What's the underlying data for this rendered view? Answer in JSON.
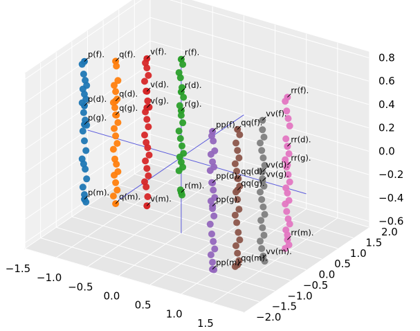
{
  "chart_data": {
    "type": "scatter",
    "projection": "3d",
    "grid": true,
    "xlim": [
      -1.5,
      2.0
    ],
    "ylim": [
      -2.0,
      2.0
    ],
    "zlim": [
      -0.65,
      0.85
    ],
    "x_ticks": [
      "−1.5",
      "−1.0",
      "−0.5",
      "0.0",
      "0.5",
      "1.0",
      "1.5"
    ],
    "y_ticks": [
      "−2.0",
      "−1.5",
      "−1.0",
      "−0.5",
      "0.0",
      "0.5",
      "1.0",
      "1.5",
      "2.0"
    ],
    "z_ticks": [
      "−0.6",
      "−0.4",
      "−0.2",
      "0.0",
      "0.2",
      "0.4",
      "0.6",
      "0.8"
    ],
    "reference_axes_color": "#5a5adc",
    "series": [
      {
        "color": "#1f77b4",
        "x": -1.55,
        "y": 0.0,
        "points": [
          0.55,
          0.47,
          0.42,
          0.38,
          0.34,
          0.3,
          0.26,
          0.22,
          0.14,
          0.08,
          0.04,
          -0.02,
          -0.1,
          -0.18,
          -0.26,
          -0.3,
          -0.34,
          -0.42,
          -0.5,
          -0.56,
          -0.62
        ],
        "labels": [
          {
            "text": "p(f).",
            "z": 0.58
          },
          {
            "text": "p(d).",
            "z": 0.2
          },
          {
            "text": "p(g).",
            "z": 0.04
          },
          {
            "text": "p(m).",
            "z": -0.6
          }
        ]
      },
      {
        "color": "#ff7f0e",
        "x": -1.05,
        "y": 0.0,
        "points": [
          0.62,
          0.5,
          0.45,
          0.4,
          0.34,
          0.3,
          0.26,
          0.2,
          0.14,
          0.08,
          0.02,
          -0.04,
          -0.1,
          -0.18,
          -0.22,
          -0.28,
          -0.32,
          -0.38,
          -0.44,
          -0.5
        ],
        "labels": [
          {
            "text": "q(f).",
            "z": 0.66
          },
          {
            "text": "q(d).",
            "z": 0.32
          },
          {
            "text": "q(g).",
            "z": 0.2
          },
          {
            "text": "q(m).",
            "z": -0.56
          }
        ]
      },
      {
        "color": "#d62728",
        "x": -0.55,
        "y": 0.0,
        "points": [
          0.72,
          0.68,
          0.62,
          0.56,
          0.48,
          0.4,
          0.35,
          0.3,
          0.24,
          0.18,
          0.1,
          0.04,
          0.0,
          -0.06,
          -0.12,
          -0.18,
          -0.24,
          -0.3,
          -0.34,
          -0.42
        ],
        "labels": [
          {
            "text": "v(f).",
            "z": 0.76
          },
          {
            "text": "v(d).",
            "z": 0.48
          },
          {
            "text": "v(g).",
            "z": 0.34
          },
          {
            "text": "v(m).",
            "z": -0.5
          }
        ]
      },
      {
        "color": "#2ca02c",
        "x": 0.0,
        "y": 0.0,
        "points": [
          0.8,
          0.72,
          0.68,
          0.6,
          0.52,
          0.44,
          0.36,
          0.3,
          0.22,
          0.16,
          0.1,
          0.04,
          0.0,
          -0.04,
          -0.08,
          -0.12,
          -0.28,
          -0.32
        ],
        "labels": [
          {
            "text": "r(f).",
            "z": 0.84
          },
          {
            "text": "r(d).",
            "z": 0.56
          },
          {
            "text": "r(g).",
            "z": 0.4
          },
          {
            "text": "r(m).",
            "z": -0.3
          }
        ]
      },
      {
        "color": "#9467bd",
        "x": 0.5,
        "y": 0.0,
        "points": [
          0.26,
          0.22,
          0.14,
          0.1,
          0.04,
          0.0,
          -0.04,
          -0.14,
          -0.2,
          -0.26,
          -0.3,
          -0.36,
          -0.42,
          -0.5,
          -0.58,
          -0.64,
          -0.7,
          -0.76,
          -0.82,
          -0.88
        ],
        "labels": [
          {
            "text": "pp(f).",
            "z": 0.3
          },
          {
            "text": "pp(d).",
            "z": -0.14
          },
          {
            "text": "pp(g).",
            "z": -0.34
          },
          {
            "text": "pp(m).",
            "z": -0.88
          }
        ]
      },
      {
        "color": "#8c564b",
        "x": 0.9,
        "y": 0.0,
        "points": [
          0.34,
          0.26,
          0.2,
          0.14,
          0.08,
          0.02,
          -0.04,
          -0.1,
          -0.16,
          -0.22,
          -0.3,
          -0.36,
          -0.42,
          -0.5,
          -0.56,
          -0.62,
          -0.68,
          -0.74,
          -0.8
        ],
        "labels": [
          {
            "text": "qq(f).",
            "z": 0.38
          },
          {
            "text": "qq(d).",
            "z": -0.04
          },
          {
            "text": "qq(g).",
            "z": -0.14
          },
          {
            "text": "qq(m).",
            "z": -0.78
          }
        ]
      },
      {
        "color": "#7f7f7f",
        "x": 1.3,
        "y": 0.0,
        "points": [
          0.44,
          0.38,
          0.32,
          0.26,
          0.2,
          0.14,
          0.08,
          0.02,
          -0.04,
          -0.1,
          -0.16,
          -0.22,
          -0.28,
          -0.34,
          -0.4,
          -0.46,
          -0.52,
          -0.58,
          -0.64,
          -0.68
        ],
        "labels": [
          {
            "text": "vv(f).",
            "z": 0.52
          },
          {
            "text": "vv(d).",
            "z": 0.08
          },
          {
            "text": "vv(g).",
            "z": 0.0
          },
          {
            "text": "vv(m).",
            "z": -0.66
          }
        ]
      },
      {
        "color": "#e377c2",
        "x": 1.7,
        "y": 0.0,
        "points": [
          0.74,
          0.66,
          0.6,
          0.54,
          0.42,
          0.36,
          0.3,
          0.24,
          0.18,
          0.12,
          0.06,
          0.0,
          -0.04,
          -0.1,
          -0.14,
          -0.2,
          -0.26,
          -0.3,
          -0.36,
          -0.4,
          -0.48,
          -0.52
        ],
        "labels": [
          {
            "text": "rr(f).",
            "z": 0.78
          },
          {
            "text": "rr(d).",
            "z": 0.36
          },
          {
            "text": "rr(g).",
            "z": 0.2
          },
          {
            "text": "rr(m).",
            "z": -0.44
          }
        ]
      }
    ]
  }
}
